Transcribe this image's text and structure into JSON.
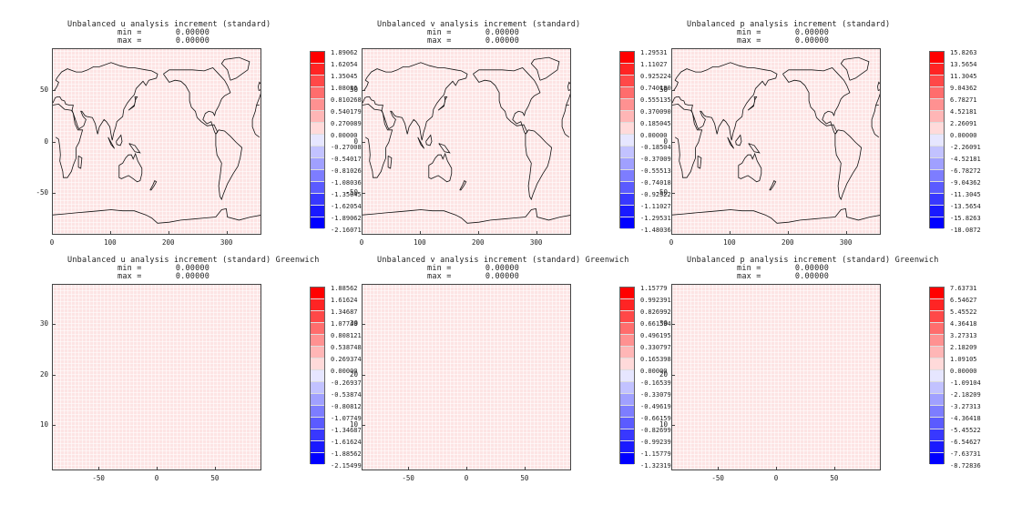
{
  "chart_data": [
    {
      "type": "heatmap",
      "title": "Unbalanced u analysis increment (standard)",
      "stats": {
        "min_label": "min =",
        "min_value": "0.00000",
        "max_label": "max =",
        "max_value": "0.00000"
      },
      "xticks": [
        "0",
        "100",
        "200",
        "300"
      ],
      "xtick_values": [
        0,
        100,
        200,
        300
      ],
      "xlim": [
        0,
        360
      ],
      "yticks": [
        "50",
        "0",
        "-50"
      ],
      "ytick_values": [
        50,
        0,
        -50
      ],
      "ylim": [
        -90,
        90
      ],
      "map_overlay": true,
      "colorbar": [
        "1.89062",
        "1.62054",
        "1.35045",
        "1.08036",
        "0.810268",
        "0.540179",
        "0.270089",
        "0.00000",
        "-0.270089",
        "-0.540179",
        "-0.810268",
        "-1.08036",
        "-1.35045",
        "-1.62054",
        "-1.89062",
        "-2.16071"
      ],
      "values": "uniform 0.0"
    },
    {
      "type": "heatmap",
      "title": "Unbalanced v analysis increment (standard)",
      "stats": {
        "min_label": "min =",
        "min_value": "0.00000",
        "max_label": "max =",
        "max_value": "0.00000"
      },
      "xticks": [
        "0",
        "100",
        "200",
        "300"
      ],
      "xtick_values": [
        0,
        100,
        200,
        300
      ],
      "xlim": [
        0,
        360
      ],
      "yticks": [
        "50",
        "0",
        "-50"
      ],
      "ytick_values": [
        50,
        0,
        -50
      ],
      "ylim": [
        -90,
        90
      ],
      "map_overlay": true,
      "colorbar": [
        "1.29531",
        "1.11027",
        "0.925224",
        "0.740180",
        "0.555135",
        "0.370090",
        "0.185045",
        "0.00000",
        "-0.185045",
        "-0.370090",
        "-0.555135",
        "-0.740180",
        "-0.925224",
        "-1.11027",
        "-1.29531",
        "-1.48036"
      ],
      "values": "uniform 0.0"
    },
    {
      "type": "heatmap",
      "title": "Unbalanced p analysis increment (standard)",
      "stats": {
        "min_label": "min =",
        "min_value": "0.00000",
        "max_label": "max =",
        "max_value": "0.00000"
      },
      "xticks": [
        "0",
        "100",
        "200",
        "300"
      ],
      "xtick_values": [
        0,
        100,
        200,
        300
      ],
      "xlim": [
        0,
        360
      ],
      "yticks": [
        "50",
        "0",
        "-50"
      ],
      "ytick_values": [
        50,
        0,
        -50
      ],
      "ylim": [
        -90,
        90
      ],
      "map_overlay": true,
      "colorbar": [
        "15.8263",
        "13.5654",
        "11.3045",
        "9.04362",
        "6.78271",
        "4.52181",
        "2.26091",
        "0.00000",
        "-2.26091",
        "-4.52181",
        "-6.78272",
        "-9.04362",
        "-11.3045",
        "-13.5654",
        "-15.8263",
        "-18.0872"
      ],
      "values": "uniform 0.0"
    },
    {
      "type": "heatmap",
      "title": "Unbalanced u analysis increment (standard) Greenwich",
      "stats": {
        "min_label": "min =",
        "min_value": "0.00000",
        "max_label": "max =",
        "max_value": "0.00000"
      },
      "xticks": [
        "-50",
        "0",
        "50"
      ],
      "xtick_values": [
        -50,
        0,
        50
      ],
      "xlim": [
        -90,
        90
      ],
      "yticks": [
        "30",
        "20",
        "10"
      ],
      "ytick_values": [
        30,
        20,
        10
      ],
      "ylim": [
        1,
        38
      ],
      "map_overlay": false,
      "colorbar": [
        "1.88562",
        "1.61624",
        "1.34687",
        "1.07749",
        "0.808121",
        "0.538748",
        "0.269374",
        "0.00000",
        "-0.269374",
        "-0.538748",
        "-0.808121",
        "-1.07749",
        "-1.34687",
        "-1.61624",
        "-1.88562",
        "-2.15499"
      ],
      "values": "uniform 0.0"
    },
    {
      "type": "heatmap",
      "title": "Unbalanced v analysis increment (standard) Greenwich",
      "stats": {
        "min_label": "min =",
        "min_value": "0.00000",
        "max_label": "max =",
        "max_value": "0.00000"
      },
      "xticks": [
        "-50",
        "0",
        "50"
      ],
      "xtick_values": [
        -50,
        0,
        50
      ],
      "xlim": [
        -90,
        90
      ],
      "yticks": [
        "30",
        "20",
        "10"
      ],
      "ytick_values": [
        30,
        20,
        10
      ],
      "ylim": [
        1,
        38
      ],
      "map_overlay": false,
      "colorbar": [
        "1.15779",
        "0.992391",
        "0.826992",
        "0.661594",
        "0.496195",
        "0.330797",
        "0.165398",
        "0.00000",
        "-0.165398",
        "-0.330797",
        "-0.496195",
        "-0.661594",
        "-0.826992",
        "-0.992391",
        "-1.15779",
        "-1.32319"
      ],
      "values": "uniform 0.0"
    },
    {
      "type": "heatmap",
      "title": "Unbalanced p analysis increment (standard) Greenwich",
      "stats": {
        "min_label": "min =",
        "min_value": "0.00000",
        "max_label": "max =",
        "max_value": "0.00000"
      },
      "xticks": [
        "-50",
        "0",
        "50"
      ],
      "xtick_values": [
        -50,
        0,
        50
      ],
      "xlim": [
        -90,
        90
      ],
      "yticks": [
        "30",
        "20",
        "10"
      ],
      "ytick_values": [
        30,
        20,
        10
      ],
      "ylim": [
        1,
        38
      ],
      "map_overlay": false,
      "colorbar": [
        "7.63731",
        "6.54627",
        "5.45522",
        "4.36418",
        "3.27313",
        "2.18209",
        "1.09105",
        "0.00000",
        "-1.09104",
        "-2.18209",
        "-3.27313",
        "-4.36418",
        "-5.45522",
        "-6.54627",
        "-7.63731",
        "-8.72836"
      ],
      "values": "uniform 0.0"
    }
  ],
  "colorbar_colors": [
    "#ff0000",
    "#ff2424",
    "#ff4848",
    "#ff6d6d",
    "#ff9191",
    "#ffb6b6",
    "#ffdada",
    "#e6e6ff",
    "#c2c2ff",
    "#a0a0ff",
    "#7d7dff",
    "#5b5bff",
    "#3838ff",
    "#1a1aff",
    "#0000ff"
  ],
  "field_color": "#fde4e4"
}
